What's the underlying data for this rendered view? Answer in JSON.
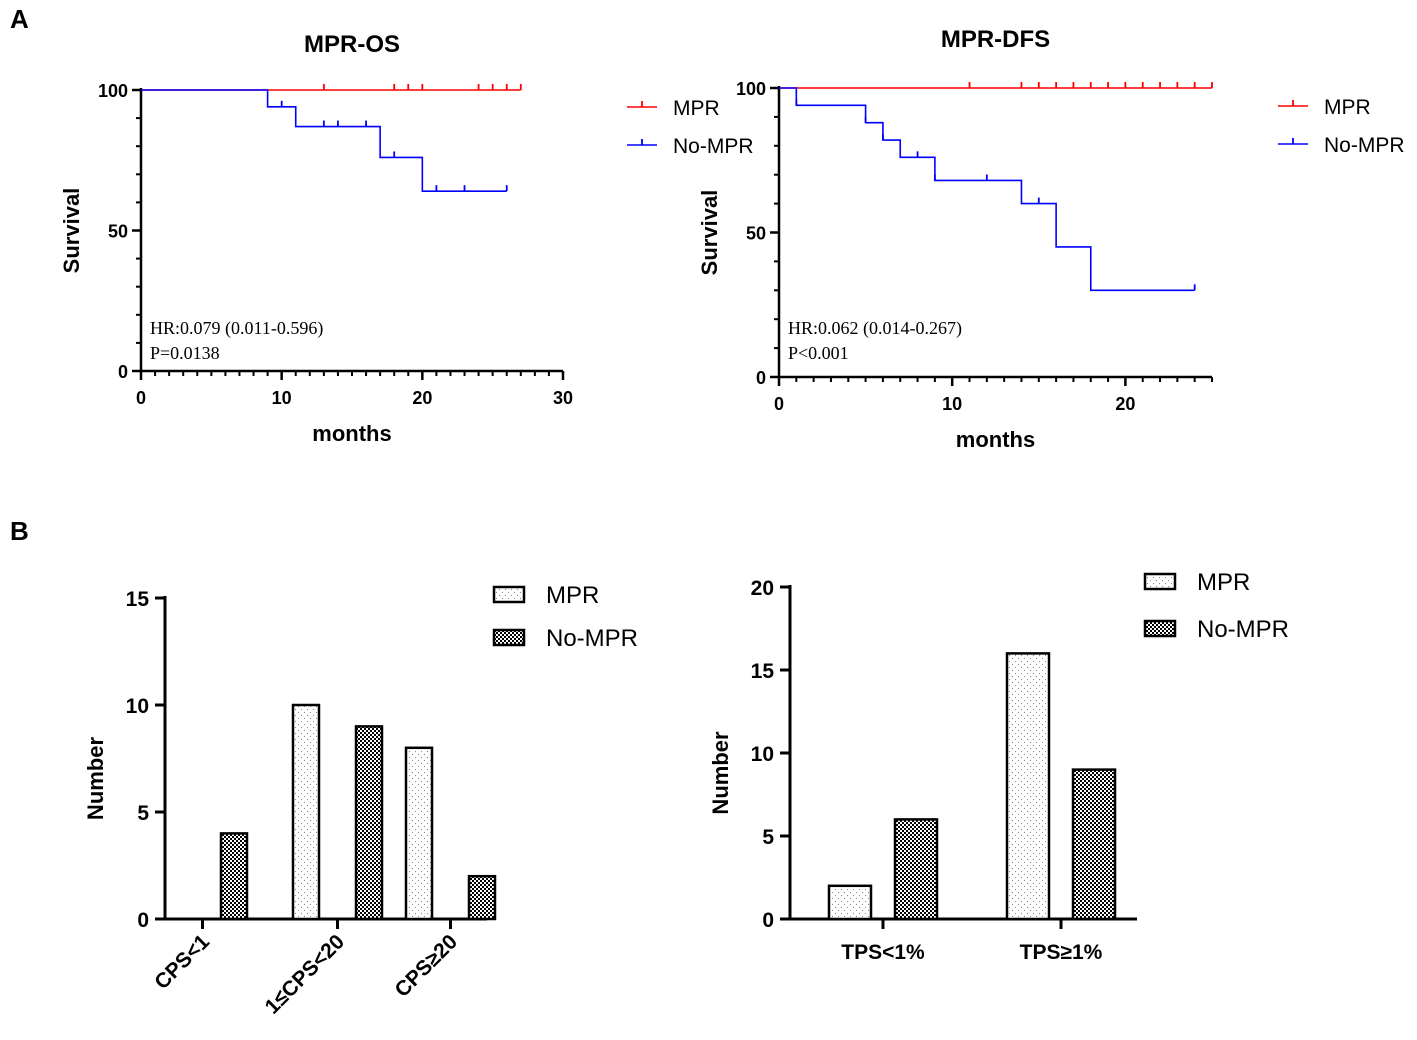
{
  "colors": {
    "mpr": "#ff0000",
    "no_mpr": "#0000ff",
    "axis": "#000000"
  },
  "panels": {
    "a": "A",
    "b": "B"
  },
  "chart_data": [
    {
      "type": "line",
      "subtype": "kaplan-meier",
      "title": "MPR-OS",
      "xlabel": "months",
      "ylabel": "Survival",
      "xlim": [
        0,
        30
      ],
      "ylim": [
        0,
        100
      ],
      "xticks": [
        0,
        10,
        20,
        30
      ],
      "yticks": [
        0,
        50,
        100
      ],
      "xtick_labels": [
        "0",
        "10",
        "20",
        "30"
      ],
      "ytick_labels": [
        "0",
        "50",
        "100"
      ],
      "legend": [
        "MPR",
        "No-MPR"
      ],
      "legend_position": "right",
      "annotation": [
        "HR:0.079 (0.011-0.596)",
        "P=0.0138"
      ],
      "series": [
        {
          "name": "MPR",
          "x": [
            0,
            27
          ],
          "y": [
            100,
            100
          ],
          "censor": [
            13,
            18,
            19,
            20,
            24,
            25,
            26,
            27
          ]
        },
        {
          "name": "No-MPR",
          "x": [
            0,
            9,
            9,
            11,
            11,
            17,
            17,
            20,
            20,
            26
          ],
          "y": [
            100,
            100,
            94,
            94,
            87,
            87,
            76,
            76,
            64,
            64
          ],
          "censor": [
            10,
            13,
            14,
            16,
            18,
            21,
            23,
            26
          ]
        }
      ]
    },
    {
      "type": "line",
      "subtype": "kaplan-meier",
      "title": "MPR-DFS",
      "xlabel": "months",
      "ylabel": "Survival",
      "xlim": [
        0,
        25
      ],
      "ylim": [
        0,
        100
      ],
      "xticks": [
        0,
        10,
        20
      ],
      "yticks": [
        0,
        50,
        100
      ],
      "xtick_labels": [
        "0",
        "10",
        "20"
      ],
      "ytick_labels": [
        "0",
        "50",
        "100"
      ],
      "legend": [
        "MPR",
        "No-MPR"
      ],
      "legend_position": "right",
      "annotation": [
        "HR:0.062 (0.014-0.267)",
        "P<0.001"
      ],
      "series": [
        {
          "name": "MPR",
          "x": [
            0,
            25
          ],
          "y": [
            100,
            100
          ],
          "censor": [
            11,
            14,
            15,
            16,
            17,
            18,
            19,
            20,
            21,
            22,
            23,
            24,
            25
          ]
        },
        {
          "name": "No-MPR",
          "x": [
            0,
            1,
            1,
            5,
            5,
            6,
            6,
            7,
            7,
            9,
            9,
            14,
            14,
            16,
            16,
            18,
            18,
            24
          ],
          "y": [
            100,
            100,
            94,
            94,
            88,
            88,
            82,
            82,
            76,
            76,
            68,
            68,
            60,
            60,
            45,
            45,
            30,
            30
          ],
          "censor": [
            1,
            5,
            6,
            8,
            9,
            12,
            15,
            24
          ]
        }
      ]
    },
    {
      "type": "bar",
      "title": "",
      "xlabel": "",
      "ylabel": "Number",
      "ylim": [
        0,
        15
      ],
      "yticks": [
        0,
        5,
        10,
        15
      ],
      "ytick_labels": [
        "0",
        "5",
        "10",
        "15"
      ],
      "categories": [
        "CPS<1",
        "1≤CPS<20",
        "CPS≥20"
      ],
      "legend": [
        "MPR",
        "No-MPR"
      ],
      "legend_position": "top-right",
      "series": [
        {
          "name": "MPR",
          "values": [
            0,
            10,
            8
          ]
        },
        {
          "name": "No-MPR",
          "values": [
            4,
            9,
            2
          ]
        }
      ]
    },
    {
      "type": "bar",
      "title": "",
      "xlabel": "",
      "ylabel": "Number",
      "ylim": [
        0,
        20
      ],
      "yticks": [
        0,
        5,
        10,
        15,
        20
      ],
      "ytick_labels": [
        "0",
        "5",
        "10",
        "15",
        "20"
      ],
      "categories": [
        "TPS<1%",
        "TPS≥1%"
      ],
      "legend": [
        "MPR",
        "No-MPR"
      ],
      "legend_position": "top-right",
      "series": [
        {
          "name": "MPR",
          "values": [
            2,
            16
          ]
        },
        {
          "name": "No-MPR",
          "values": [
            6,
            9
          ]
        }
      ]
    }
  ]
}
